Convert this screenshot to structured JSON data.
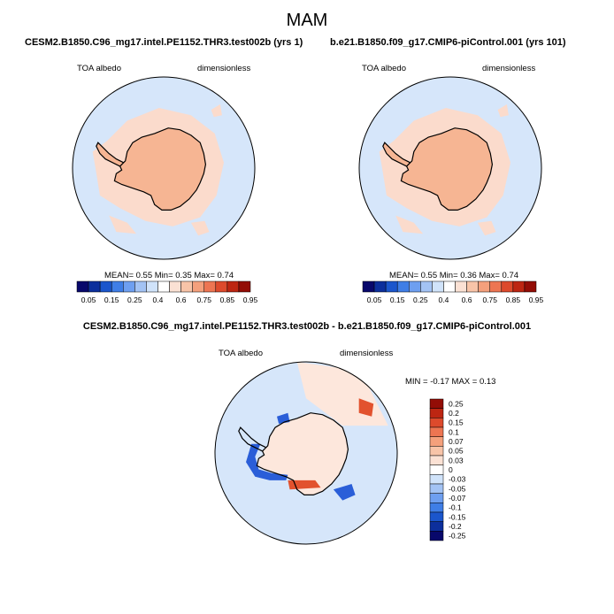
{
  "title": "MAM",
  "panels": [
    {
      "case": "CESM2.B1850.C96_mg17.intel.PE1152.THR3.test002b (yrs 1)",
      "variable": "TOA albedo",
      "units": "dimensionless",
      "stats": "MEAN=  0.55  Min=  0.35  Max=  0.74"
    },
    {
      "case": "b.e21.B1850.f09_g17.CMIP6-piControl.001 (yrs 101)",
      "variable": "TOA albedo",
      "units": "dimensionless",
      "stats": "MEAN=  0.55  Min=  0.36  Max=  0.74"
    }
  ],
  "diff": {
    "title": "CESM2.B1850.C96_mg17.intel.PE1152.THR3.test002b - b.e21.B1850.f09_g17.CMIP6-piControl.001",
    "variable": "TOA albedo",
    "units": "dimensionless",
    "stats": "MIN =  -0.17 MAX =   0.13"
  },
  "colorbar_main": {
    "labels": [
      "0.05",
      "0.15",
      "0.25",
      "0.4",
      "0.6",
      "0.75",
      "0.85",
      "0.95"
    ],
    "colors": [
      "#08086b",
      "#0c2f9c",
      "#1b56cc",
      "#3f7ee6",
      "#6e9ff0",
      "#a3c3f4",
      "#d0e3fa",
      "#ffffff",
      "#fbe1d4",
      "#f8c4a8",
      "#f4a07c",
      "#ed7552",
      "#dd4a2c",
      "#bd2612",
      "#930d06"
    ]
  },
  "colorbar_diff": {
    "labels": [
      "0.25",
      "0.2",
      "0.15",
      "0.1",
      "0.07",
      "0.05",
      "0.03",
      "0",
      "-0.03",
      "-0.05",
      "-0.07",
      "-0.1",
      "-0.15",
      "-0.2",
      "-0.25"
    ],
    "colors": [
      "#930d06",
      "#bd2612",
      "#dd4a2c",
      "#ed7552",
      "#f4a07c",
      "#f8c4a8",
      "#fbe1d4",
      "#ffffff",
      "#d0e3fa",
      "#a3c3f4",
      "#6e9ff0",
      "#3f7ee6",
      "#1b56cc",
      "#0c2f9c",
      "#08086b"
    ]
  },
  "colors": {
    "ocean": "#d6e6fa",
    "land": "#f6b593",
    "ring": "#fbdbcc",
    "diff_bg": "#fde7dc",
    "diff_neg": "#2a5ed8",
    "diff_pos": "#e2522e"
  }
}
